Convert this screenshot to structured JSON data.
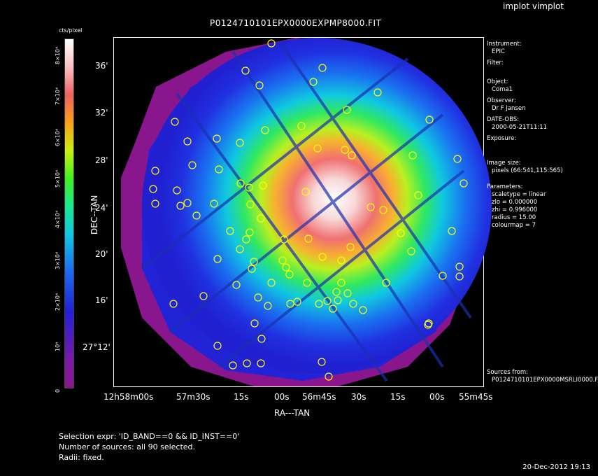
{
  "window": {
    "title": "implot vimplot"
  },
  "image": {
    "title": "P0124710101EPX0000EXPMP8000.FIT"
  },
  "colorbar": {
    "unit": "cts/pixel",
    "ticks": [
      "0",
      "10⁴",
      "2×10⁴",
      "3×10⁴",
      "4×10⁴",
      "5×10⁴",
      "6×10⁴",
      "7×10⁴",
      "8×10⁴"
    ]
  },
  "axes": {
    "xlabel": "RA---TAN",
    "ylabel": "DEC--TAN",
    "yticks": [
      "36'",
      "32'",
      "28'",
      "24'",
      "20'",
      "16'",
      "27°12'"
    ],
    "xticks": [
      "12h58m00s",
      "57m30s",
      "15s",
      "00s",
      "56m45s",
      "30s",
      "15s",
      "00s",
      "55m45s"
    ]
  },
  "info": {
    "instrument_label": "Instrument:",
    "instrument": "EPIC",
    "filter_label": "Filter:",
    "object_label": "Object:",
    "object": "Coma1",
    "observer_label": "Observer:",
    "observer": "Dr F Jansen",
    "date_label": "DATE-OBS:",
    "date": "2000-05-21T11:11",
    "exposure_label": "Exposure:",
    "imagesize_label": "Image size:",
    "imagesize": "pixels (66:541,115:565)",
    "params_label": "Parameters:",
    "scaletype": "scaletype = linear",
    "zlo": "zlo = 0.000000",
    "zhi": "zhi = 0.996000",
    "radius": "radius = 15.00",
    "colourmap": "colourmap = 7",
    "sources_label": "Sources from:",
    "sources_file": "P0124710101EPX0000MSRLI0000.F"
  },
  "footer": {
    "line1": "Selection expr: 'ID_BAND==0 && ID_INST==0'",
    "line2": "Number of sources: all 90 selected.",
    "line3": "Radii: fixed."
  },
  "timestamp": "20-Dec-2012 19:13",
  "colors": {
    "source_circle": "#ffff00",
    "frame": "#ffffff",
    "background": "#000000"
  }
}
